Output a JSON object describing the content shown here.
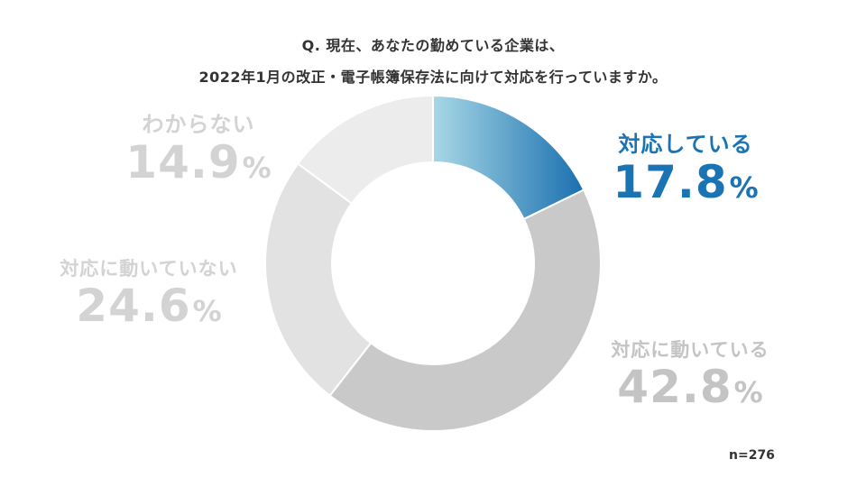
{
  "chart_data": {
    "type": "pie",
    "title_lines": [
      "Q. 現在、あなたの勤めている企業は、",
      "2022年1月の改正・電子帳簿保存法に向けて対応を行っていますか。"
    ],
    "slices": [
      {
        "label": "対応している",
        "value": 17.8,
        "display": "17.8",
        "unit": "%"
      },
      {
        "label": "対応に動いている",
        "value": 42.8,
        "display": "42.8",
        "unit": "%"
      },
      {
        "label": "対応に動いていない",
        "value": 24.6,
        "display": "24.6",
        "unit": "%"
      },
      {
        "label": "わからない",
        "value": 14.9,
        "display": "14.9",
        "unit": "%"
      }
    ],
    "colors": {
      "highlight_from": "#a8d8e6",
      "highlight_to": "#1a6fb0",
      "slice_2": "#c9c9c9",
      "slice_3": "#e2e2e2",
      "slice_4": "#ececec"
    },
    "sample_size": "n=276"
  }
}
